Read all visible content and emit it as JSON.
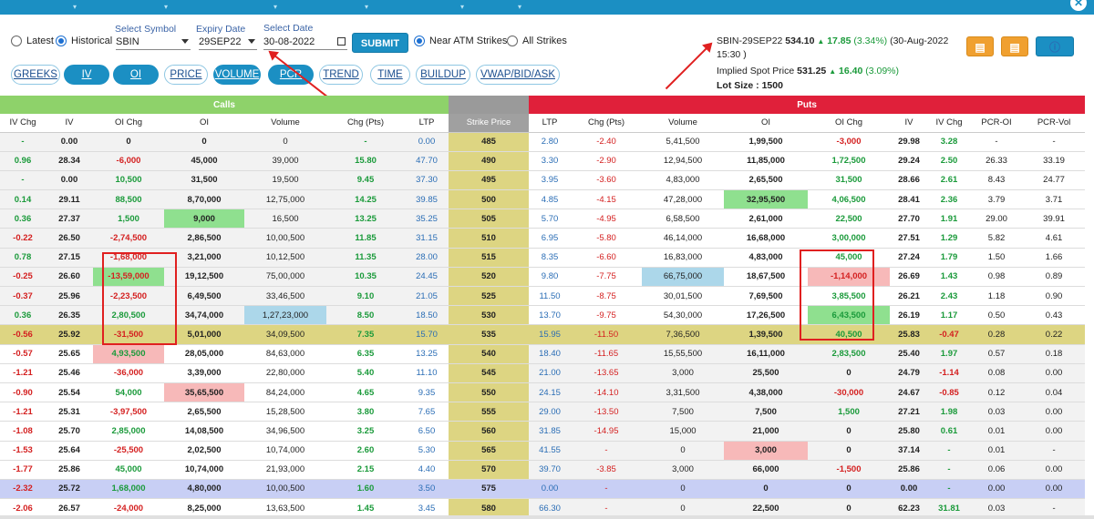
{
  "controls": {
    "latest_label": "Latest",
    "historical_label": "Historical",
    "symbol_label": "Select Symbol",
    "symbol_value": "SBIN",
    "expiry_label": "Expiry Date",
    "expiry_value": "29SEP22",
    "date_label": "Select Date",
    "date_value": "30-08-2022",
    "submit_label": "SUBMIT",
    "near_atm_label": "Near ATM Strikes",
    "all_strikes_label": "All Strikes"
  },
  "tabs": [
    "GREEKS",
    "IV",
    "OI",
    "PRICE",
    "VOLUME",
    "PCR",
    "TREND",
    "TIME",
    "BUILDUP",
    "VWAP/BID/ASK"
  ],
  "quote": {
    "symbol": "SBIN-29SEP22",
    "price": "534.10",
    "change": "17.85",
    "change_pct": "(3.34%)",
    "timestamp": "(30-Aug-2022 15:30 )",
    "implied_spot_label": "Implied Spot Price",
    "implied_spot": "531.25",
    "implied_change": "16.40",
    "implied_change_pct": "(3.09%)",
    "lot_size_label": "Lot Size :",
    "lot_size": "1500"
  },
  "colors": {
    "accent": "#1b8fc3",
    "calls": "#8ed26a",
    "puts": "#e0203a",
    "atm": "#ddd582",
    "highlight": "#c8cff5"
  },
  "bands": {
    "calls": "Calls",
    "puts": "Puts"
  },
  "headers": [
    "IV Chg",
    "IV",
    "OI Chg",
    "OI",
    "Volume",
    "Chg (Pts)",
    "LTP",
    "Strike Price",
    "LTP",
    "Chg (Pts)",
    "Volume",
    "OI",
    "OI Chg",
    "IV",
    "IV Chg",
    "PCR-OI",
    "PCR-Vol"
  ],
  "rows": [
    [
      "-",
      "0.00",
      "0",
      "0",
      "0",
      "-",
      "0.00",
      "485",
      "2.80",
      "-2.40",
      "5,41,500",
      "1,99,500",
      "-3,000",
      "29.98",
      "3.28",
      "-",
      "-"
    ],
    [
      "0.96",
      "28.34",
      "-6,000",
      "45,000",
      "39,000",
      "15.80",
      "47.70",
      "490",
      "3.30",
      "-2.90",
      "12,94,500",
      "11,85,000",
      "1,72,500",
      "29.24",
      "2.50",
      "26.33",
      "33.19"
    ],
    [
      "-",
      "0.00",
      "10,500",
      "31,500",
      "19,500",
      "9.45",
      "37.30",
      "495",
      "3.95",
      "-3.60",
      "4,83,000",
      "2,65,500",
      "31,500",
      "28.66",
      "2.61",
      "8.43",
      "24.77"
    ],
    [
      "0.14",
      "29.11",
      "88,500",
      "8,70,000",
      "12,75,000",
      "14.25",
      "39.85",
      "500",
      "4.85",
      "-4.15",
      "47,28,000",
      "32,95,500",
      "4,06,500",
      "28.41",
      "2.36",
      "3.79",
      "3.71"
    ],
    [
      "0.36",
      "27.37",
      "1,500",
      "9,000",
      "16,500",
      "13.25",
      "35.25",
      "505",
      "5.70",
      "-4.95",
      "6,58,500",
      "2,61,000",
      "22,500",
      "27.70",
      "1.91",
      "29.00",
      "39.91"
    ],
    [
      "-0.22",
      "26.50",
      "-2,74,500",
      "2,86,500",
      "10,00,500",
      "11.85",
      "31.15",
      "510",
      "6.95",
      "-5.80",
      "46,14,000",
      "16,68,000",
      "3,00,000",
      "27.51",
      "1.29",
      "5.82",
      "4.61"
    ],
    [
      "0.78",
      "27.15",
      "-1,68,000",
      "3,21,000",
      "10,12,500",
      "11.35",
      "28.00",
      "515",
      "8.35",
      "-6.60",
      "16,83,000",
      "4,83,000",
      "45,000",
      "27.24",
      "1.79",
      "1.50",
      "1.66"
    ],
    [
      "-0.25",
      "26.60",
      "-13,59,000",
      "19,12,500",
      "75,00,000",
      "10.35",
      "24.45",
      "520",
      "9.80",
      "-7.75",
      "66,75,000",
      "18,67,500",
      "-1,14,000",
      "26.69",
      "1.43",
      "0.98",
      "0.89"
    ],
    [
      "-0.37",
      "25.96",
      "-2,23,500",
      "6,49,500",
      "33,46,500",
      "9.10",
      "21.05",
      "525",
      "11.50",
      "-8.75",
      "30,01,500",
      "7,69,500",
      "3,85,500",
      "26.21",
      "2.43",
      "1.18",
      "0.90"
    ],
    [
      "0.36",
      "26.35",
      "2,80,500",
      "34,74,000",
      "1,27,23,000",
      "8.50",
      "18.50",
      "530",
      "13.70",
      "-9.75",
      "54,30,000",
      "17,26,500",
      "6,43,500",
      "26.19",
      "1.17",
      "0.50",
      "0.43"
    ],
    [
      "-0.56",
      "25.92",
      "-31,500",
      "5,01,000",
      "34,09,500",
      "7.35",
      "15.70",
      "535",
      "15.95",
      "-11.50",
      "7,36,500",
      "1,39,500",
      "40,500",
      "25.83",
      "-0.47",
      "0.28",
      "0.22"
    ],
    [
      "-0.57",
      "25.65",
      "4,93,500",
      "28,05,000",
      "84,63,000",
      "6.35",
      "13.25",
      "540",
      "18.40",
      "-11.65",
      "15,55,500",
      "16,11,000",
      "2,83,500",
      "25.40",
      "1.97",
      "0.57",
      "0.18"
    ],
    [
      "-1.21",
      "25.46",
      "-36,000",
      "3,39,000",
      "22,80,000",
      "5.40",
      "11.10",
      "545",
      "21.00",
      "-13.65",
      "3,000",
      "25,500",
      "0",
      "24.79",
      "-1.14",
      "0.08",
      "0.00"
    ],
    [
      "-0.90",
      "25.54",
      "54,000",
      "35,65,500",
      "84,24,000",
      "4.65",
      "9.35",
      "550",
      "24.15",
      "-14.10",
      "3,31,500",
      "4,38,000",
      "-30,000",
      "24.67",
      "-0.85",
      "0.12",
      "0.04"
    ],
    [
      "-1.21",
      "25.31",
      "-3,97,500",
      "2,65,500",
      "15,28,500",
      "3.80",
      "7.65",
      "555",
      "29.00",
      "-13.50",
      "7,500",
      "7,500",
      "1,500",
      "27.21",
      "1.98",
      "0.03",
      "0.00"
    ],
    [
      "-1.08",
      "25.70",
      "2,85,000",
      "14,08,500",
      "34,96,500",
      "3.25",
      "6.50",
      "560",
      "31.85",
      "-14.95",
      "15,000",
      "21,000",
      "0",
      "25.80",
      "0.61",
      "0.01",
      "0.00"
    ],
    [
      "-1.53",
      "25.64",
      "-25,500",
      "2,02,500",
      "10,74,000",
      "2.60",
      "5.30",
      "565",
      "41.55",
      "-",
      "0",
      "3,000",
      "0",
      "37.14",
      "-",
      "0.01",
      "-"
    ],
    [
      "-1.77",
      "25.86",
      "45,000",
      "10,74,000",
      "21,93,000",
      "2.15",
      "4.40",
      "570",
      "39.70",
      "-3.85",
      "3,000",
      "66,000",
      "-1,500",
      "25.86",
      "-",
      "0.06",
      "0.00"
    ],
    [
      "-2.32",
      "25.72",
      "1,68,000",
      "4,80,000",
      "10,00,500",
      "1.60",
      "3.50",
      "575",
      "0.00",
      "-",
      "0",
      "0",
      "0",
      "0.00",
      "-",
      "0.00",
      "0.00"
    ],
    [
      "-2.06",
      "26.57",
      "-24,000",
      "8,25,000",
      "13,63,500",
      "1.45",
      "3.45",
      "580",
      "66.30",
      "-",
      "0",
      "22,500",
      "0",
      "62.23",
      "31.81",
      "0.03",
      "-"
    ]
  ]
}
